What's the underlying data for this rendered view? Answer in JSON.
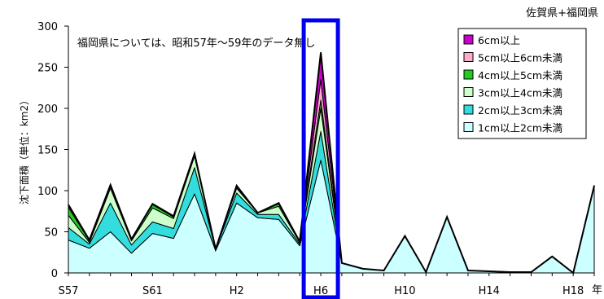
{
  "chart_data": {
    "type": "area",
    "stacked": true,
    "region": "佐賀県+福岡県",
    "annotation": "福岡県については、昭和57年～59年のデータ無し",
    "ylabel": "沈下面積（単位：km2）",
    "xlabel": "年",
    "ylim": [
      0,
      300
    ],
    "yticks": [
      0,
      50,
      100,
      150,
      200,
      250,
      300
    ],
    "years": [
      1982,
      1983,
      1984,
      1985,
      1986,
      1987,
      1988,
      1989,
      1990,
      1991,
      1992,
      1993,
      1994,
      1995,
      1996,
      1997,
      1998,
      1999,
      2000,
      2001,
      2002,
      2003,
      2004,
      2005,
      2006,
      2007
    ],
    "x_tick_labels": [
      {
        "year": 1982,
        "label": "S57"
      },
      {
        "year": 1986,
        "label": "S61"
      },
      {
        "year": 1990,
        "label": "H2"
      },
      {
        "year": 1994,
        "label": "H6"
      },
      {
        "year": 1998,
        "label": "H10"
      },
      {
        "year": 2002,
        "label": "H14"
      },
      {
        "year": 2006,
        "label": "H18"
      }
    ],
    "highlight_year": 1994,
    "highlight_color": "#0000ee",
    "grid": false,
    "legend_position": "top-right",
    "series": [
      {
        "name": "1cm以上2cm未満",
        "color": "#ccffff",
        "values": [
          40,
          30,
          50,
          24,
          48,
          42,
          96,
          27,
          85,
          67,
          65,
          33,
          137,
          12,
          5,
          3,
          45,
          1,
          68,
          3,
          2,
          1,
          1,
          20,
          0,
          106
        ]
      },
      {
        "name": "2cm以上3cm未満",
        "color": "#33dddd",
        "values": [
          15,
          5,
          35,
          10,
          14,
          12,
          32,
          2,
          12,
          4,
          6,
          2,
          35,
          0,
          0,
          0,
          0,
          0,
          0,
          0,
          0,
          0,
          0,
          0,
          0,
          0
        ]
      },
      {
        "name": "3cm以上4cm未満",
        "color": "#ccffcc",
        "values": [
          15,
          2,
          18,
          5,
          17,
          12,
          14,
          0,
          6,
          2,
          10,
          2,
          28,
          0,
          0,
          0,
          0,
          0,
          0,
          0,
          0,
          0,
          0,
          0,
          0,
          0
        ]
      },
      {
        "name": "4cm以上5cm未満",
        "color": "#22cc22",
        "values": [
          10,
          2,
          3,
          2,
          4,
          2,
          2,
          0,
          2,
          0,
          3,
          1,
          10,
          0,
          0,
          0,
          0,
          0,
          0,
          0,
          0,
          0,
          0,
          0,
          0,
          0
        ]
      },
      {
        "name": "5cm以上6cm未満",
        "color": "#ffaacc",
        "values": [
          3,
          1,
          1,
          0,
          1,
          1,
          1,
          0,
          1,
          0,
          1,
          0,
          25,
          0,
          0,
          0,
          0,
          0,
          0,
          0,
          0,
          0,
          0,
          0,
          0,
          0
        ]
      },
      {
        "name": "6cm以上",
        "color": "#cc00cc",
        "values": [
          0,
          0,
          0,
          0,
          0,
          0,
          0,
          0,
          0,
          0,
          0,
          0,
          33,
          0,
          0,
          0,
          0,
          0,
          0,
          0,
          0,
          0,
          0,
          0,
          0,
          0
        ]
      }
    ]
  }
}
